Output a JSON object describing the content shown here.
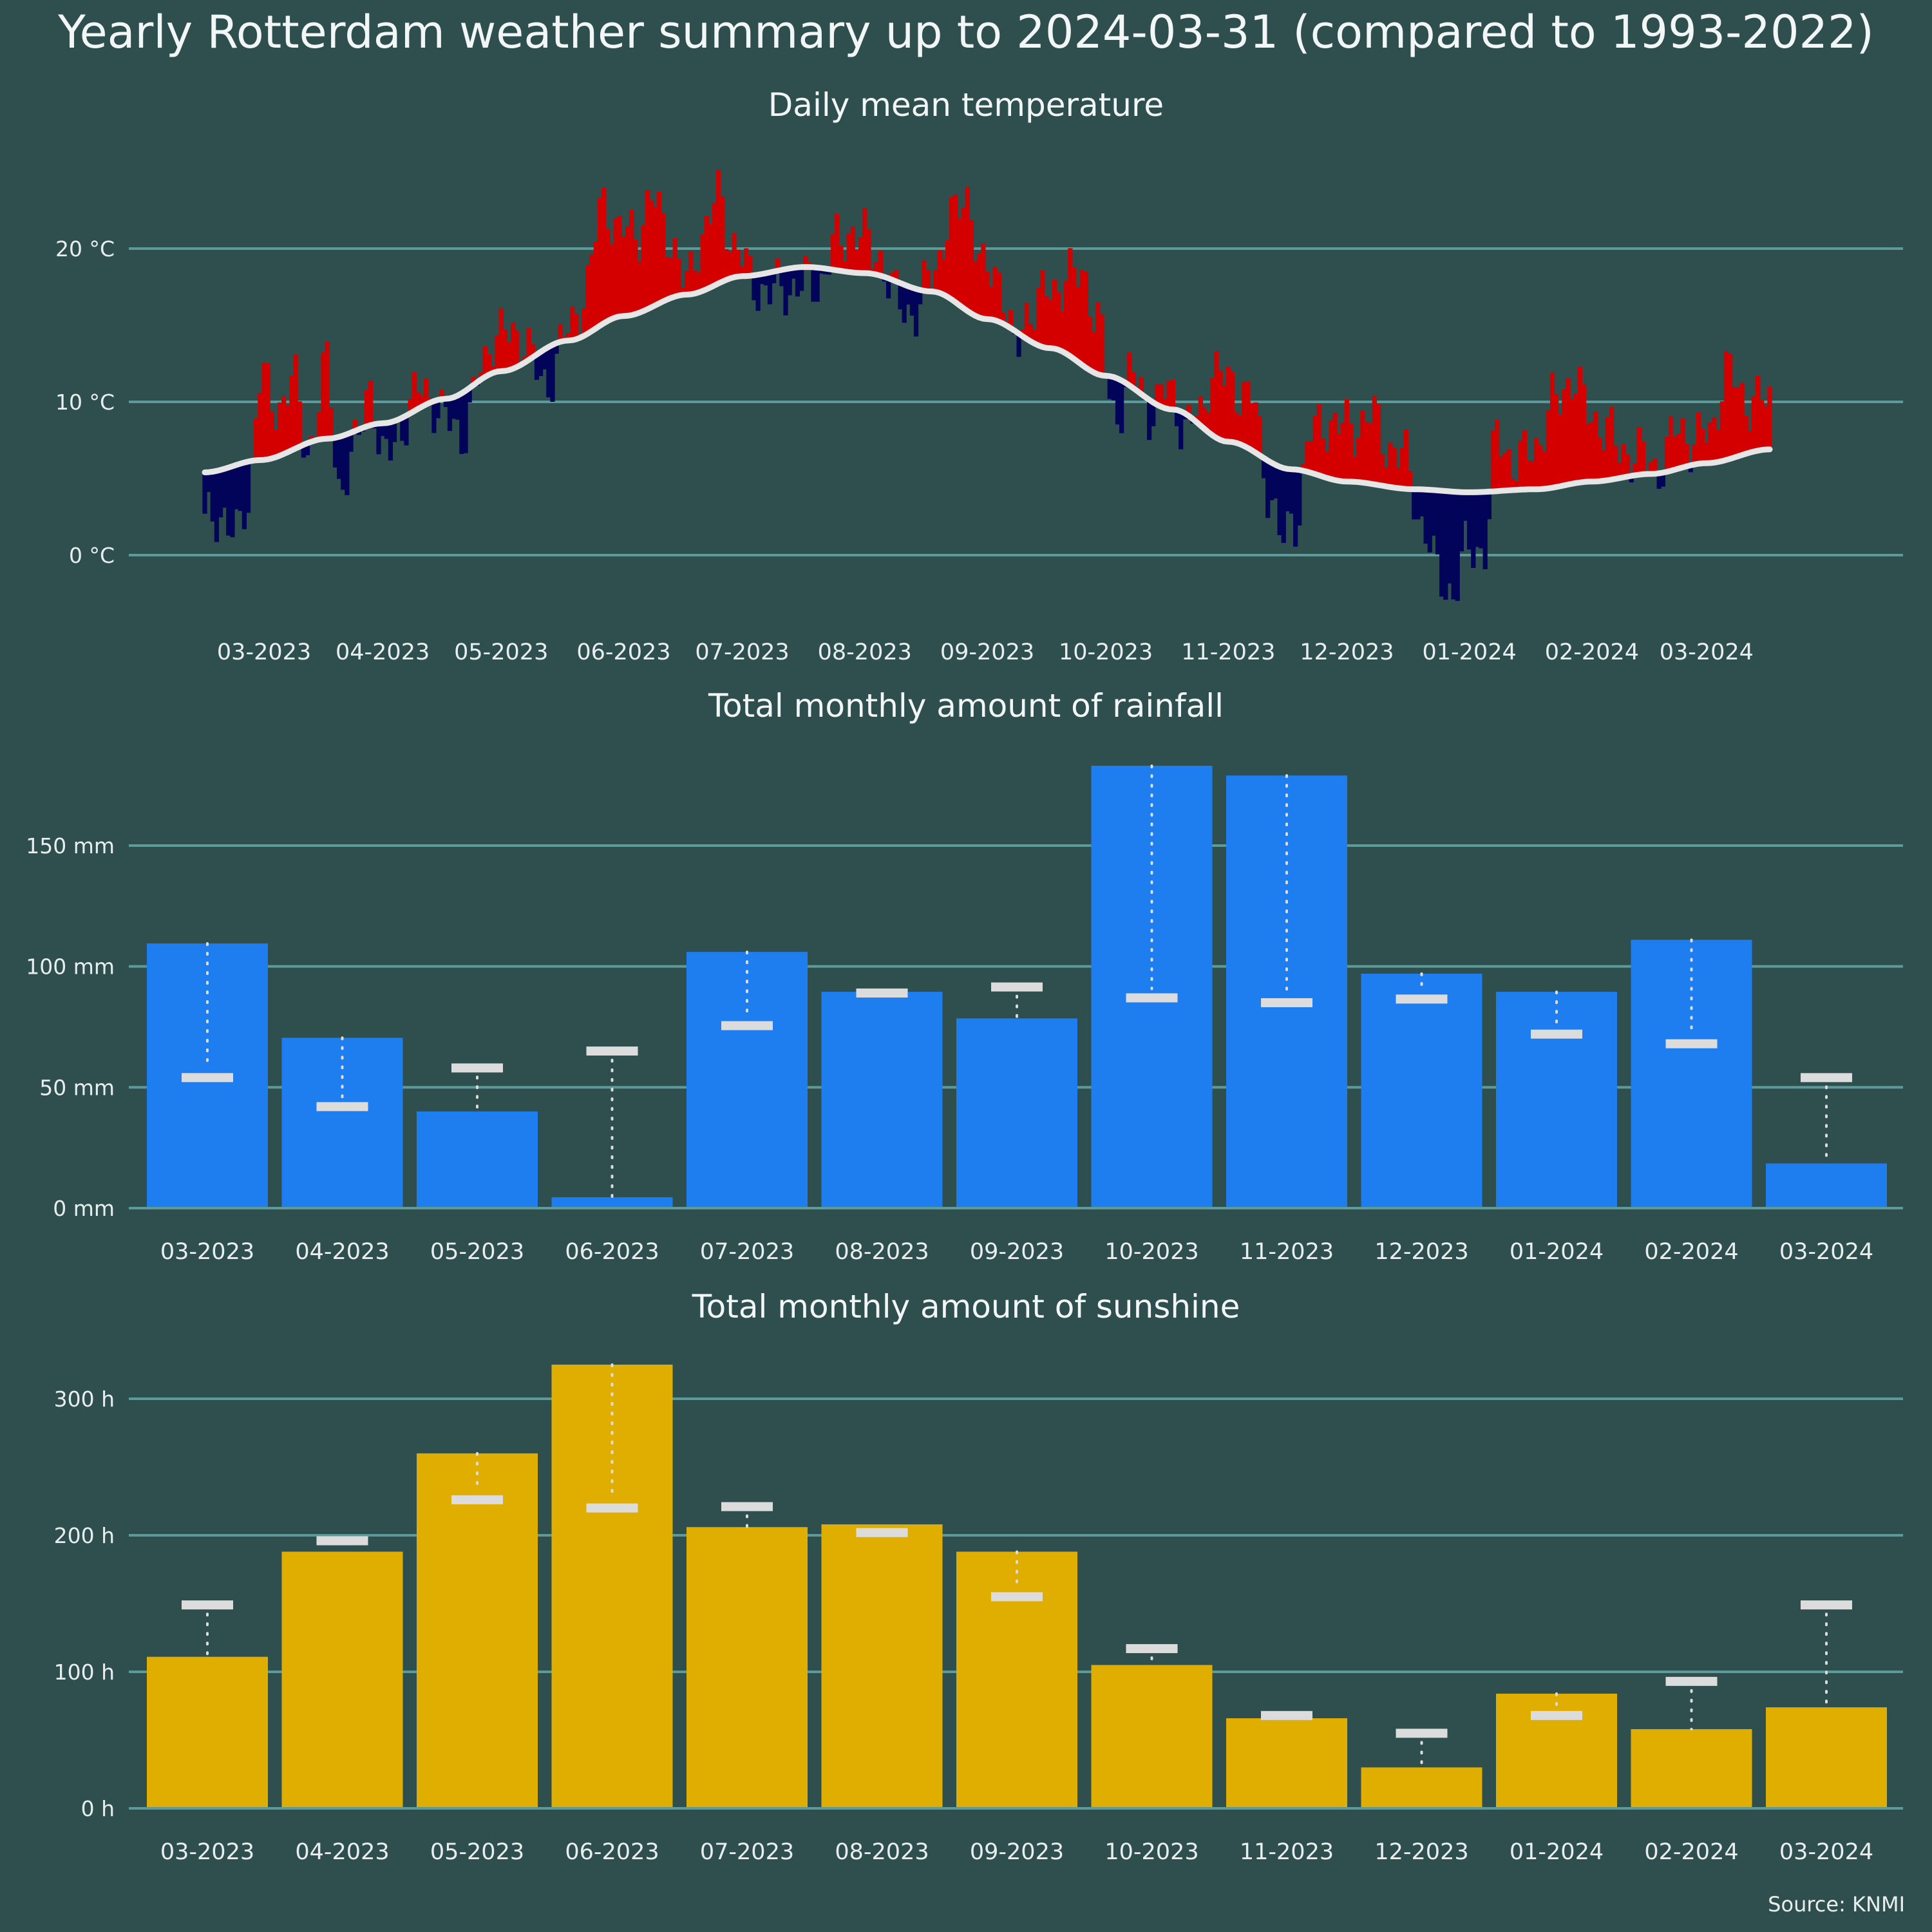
{
  "title": "Yearly Rotterdam weather summary up to 2024-03-31 (compared to 1993-2022)",
  "source": "Source: KNMI",
  "colors": {
    "background": "#2f4f4f",
    "grid": "#5d9a9a",
    "warm": "#d40000",
    "cold": "#02045a",
    "normal_line": "#e6e6e6",
    "rain": "#1e7ef0",
    "sun": "#e0ae00",
    "normal_marker": "#dcdcdc"
  },
  "chart_data": [
    {
      "type": "bar",
      "title": "Daily mean temperature",
      "unit": "°C",
      "y_ticks": [
        0,
        10,
        20
      ],
      "y_tick_labels": [
        "0 °C",
        "10 °C",
        "20 °C"
      ],
      "ylim": [
        -4,
        26.5
      ],
      "date_range": [
        "2023-03-01",
        "2024-03-31"
      ],
      "x_tick_labels": [
        "03-2023",
        "04-2023",
        "05-2023",
        "06-2023",
        "07-2023",
        "08-2023",
        "09-2023",
        "10-2023",
        "11-2023",
        "12-2023",
        "01-2024",
        "02-2024",
        "03-2024"
      ],
      "x_tick_dates": [
        "2023-03-16",
        "2023-04-15",
        "2023-05-15",
        "2023-06-15",
        "2023-07-15",
        "2023-08-15",
        "2023-09-15",
        "2023-10-15",
        "2023-11-15",
        "2023-12-15",
        "2024-01-15",
        "2024-02-15",
        "2024-03-15"
      ],
      "normal_curve": [
        [
          "2023-03-01",
          5.4
        ],
        [
          "2023-03-15",
          6.2
        ],
        [
          "2023-04-01",
          7.6
        ],
        [
          "2023-04-15",
          8.6
        ],
        [
          "2023-05-01",
          10.2
        ],
        [
          "2023-05-15",
          12.0
        ],
        [
          "2023-06-01",
          14.0
        ],
        [
          "2023-06-15",
          15.6
        ],
        [
          "2023-07-01",
          17.0
        ],
        [
          "2023-07-15",
          18.2
        ],
        [
          "2023-07-31",
          18.8
        ],
        [
          "2023-08-15",
          18.4
        ],
        [
          "2023-09-01",
          17.2
        ],
        [
          "2023-09-15",
          15.4
        ],
        [
          "2023-10-01",
          13.5
        ],
        [
          "2023-10-15",
          11.7
        ],
        [
          "2023-11-01",
          9.5
        ],
        [
          "2023-11-15",
          7.4
        ],
        [
          "2023-12-01",
          5.6
        ],
        [
          "2023-12-15",
          4.8
        ],
        [
          "2024-01-01",
          4.3
        ],
        [
          "2024-01-15",
          4.1
        ],
        [
          "2024-02-01",
          4.3
        ],
        [
          "2024-02-15",
          4.8
        ],
        [
          "2024-03-01",
          5.3
        ],
        [
          "2024-03-15",
          6.0
        ],
        [
          "2024-03-31",
          6.9
        ]
      ],
      "daily_series": {
        "name": "Daily mean temperature",
        "deviation_anchors": [
          [
            "2023-03-01",
            -3.5
          ],
          [
            "2023-03-06",
            -2.8
          ],
          [
            "2023-03-09",
            -4.9
          ],
          [
            "2023-03-12",
            -2.5
          ],
          [
            "2023-03-15",
            5.5
          ],
          [
            "2023-03-19",
            3.0
          ],
          [
            "2023-03-23",
            4.8
          ],
          [
            "2023-03-27",
            -0.5
          ],
          [
            "2023-04-01",
            4.6
          ],
          [
            "2023-04-04",
            -3.2
          ],
          [
            "2023-04-08",
            -1.4
          ],
          [
            "2023-04-12",
            2.8
          ],
          [
            "2023-04-15",
            -2.6
          ],
          [
            "2023-04-20",
            -0.4
          ],
          [
            "2023-04-25",
            1.2
          ],
          [
            "2023-05-01",
            -1.4
          ],
          [
            "2023-05-06",
            -2.5
          ],
          [
            "2023-05-10",
            0.5
          ],
          [
            "2023-05-13",
            2.5
          ],
          [
            "2023-05-20",
            2.0
          ],
          [
            "2023-05-26",
            -2.4
          ],
          [
            "2023-06-01",
            0.5
          ],
          [
            "2023-06-05",
            2.7
          ],
          [
            "2023-06-10",
            7.8
          ],
          [
            "2023-06-14",
            5.6
          ],
          [
            "2023-06-18",
            5.2
          ],
          [
            "2023-06-22",
            7.0
          ],
          [
            "2023-06-26",
            4.5
          ],
          [
            "2023-07-01",
            0.6
          ],
          [
            "2023-07-05",
            3.8
          ],
          [
            "2023-07-09",
            5.5
          ],
          [
            "2023-07-13",
            2.2
          ],
          [
            "2023-07-18",
            -0.6
          ],
          [
            "2023-07-23",
            -1.3
          ],
          [
            "2023-07-28",
            -1.2
          ],
          [
            "2023-08-03",
            -1.0
          ],
          [
            "2023-08-08",
            1.6
          ],
          [
            "2023-08-12",
            2.8
          ],
          [
            "2023-08-18",
            1.5
          ],
          [
            "2023-08-23",
            -1.2
          ],
          [
            "2023-08-28",
            -1.6
          ],
          [
            "2023-09-01",
            1.2
          ],
          [
            "2023-09-06",
            5.0
          ],
          [
            "2023-09-10",
            7.6
          ],
          [
            "2023-09-14",
            2.8
          ],
          [
            "2023-09-18",
            3.2
          ],
          [
            "2023-09-22",
            -1.4
          ],
          [
            "2023-09-26",
            2.4
          ],
          [
            "2023-10-01",
            3.6
          ],
          [
            "2023-10-06",
            5.2
          ],
          [
            "2023-10-10",
            5.8
          ],
          [
            "2023-10-13",
            3.5
          ],
          [
            "2023-10-17",
            -2.5
          ],
          [
            "2023-10-22",
            0.8
          ],
          [
            "2023-10-26",
            -0.6
          ],
          [
            "2023-10-31",
            1.2
          ],
          [
            "2023-11-04",
            -0.8
          ],
          [
            "2023-11-08",
            0.5
          ],
          [
            "2023-11-11",
            4.5
          ],
          [
            "2023-11-16",
            3.6
          ],
          [
            "2023-11-21",
            3.5
          ],
          [
            "2023-11-25",
            -1.6
          ],
          [
            "2023-11-29",
            -4.8
          ],
          [
            "2023-12-02",
            -3.2
          ],
          [
            "2023-12-06",
            2.6
          ],
          [
            "2023-12-11",
            3.8
          ],
          [
            "2023-12-16",
            3.4
          ],
          [
            "2023-12-21",
            4.4
          ],
          [
            "2023-12-26",
            2.6
          ],
          [
            "2023-12-30",
            1.8
          ],
          [
            "2024-01-03",
            -2.2
          ],
          [
            "2024-01-07",
            -5.4
          ],
          [
            "2024-01-11",
            -6.6
          ],
          [
            "2024-01-15",
            -3.4
          ],
          [
            "2024-01-19",
            -3.8
          ],
          [
            "2024-01-22",
            3.8
          ],
          [
            "2024-01-27",
            1.5
          ],
          [
            "2024-02-01",
            3.0
          ],
          [
            "2024-02-06",
            5.6
          ],
          [
            "2024-02-10",
            7.0
          ],
          [
            "2024-02-14",
            4.5
          ],
          [
            "2024-02-18",
            3.6
          ],
          [
            "2024-02-22",
            1.8
          ],
          [
            "2024-02-27",
            1.2
          ],
          [
            "2024-03-03",
            0.4
          ],
          [
            "2024-03-08",
            2.6
          ],
          [
            "2024-03-12",
            1.4
          ],
          [
            "2024-03-16",
            2.0
          ],
          [
            "2024-03-20",
            5.8
          ],
          [
            "2024-03-25",
            3.5
          ],
          [
            "2024-03-31",
            3.0
          ]
        ]
      }
    },
    {
      "type": "bar",
      "title": "Total monthly amount of rainfall",
      "unit": "mm",
      "categories": [
        "03-2023",
        "04-2023",
        "05-2023",
        "06-2023",
        "07-2023",
        "08-2023",
        "09-2023",
        "10-2023",
        "11-2023",
        "12-2023",
        "01-2024",
        "02-2024",
        "03-2024"
      ],
      "values": [
        109.5,
        70.5,
        40,
        4.5,
        106,
        89.5,
        78.5,
        183,
        179,
        97,
        89.5,
        111,
        18.5
      ],
      "normals": [
        54,
        42,
        58,
        65,
        75.5,
        89,
        91.5,
        87,
        85,
        86.5,
        72,
        68,
        54
      ],
      "y_ticks": [
        0,
        50,
        100,
        150
      ],
      "y_tick_labels": [
        "0 mm",
        "50 mm",
        "100 mm",
        "150 mm"
      ],
      "ylim": [
        0,
        183
      ]
    },
    {
      "type": "bar",
      "title": "Total monthly amount of sunshine",
      "unit": "h",
      "categories": [
        "03-2023",
        "04-2023",
        "05-2023",
        "06-2023",
        "07-2023",
        "08-2023",
        "09-2023",
        "10-2023",
        "11-2023",
        "12-2023",
        "01-2024",
        "02-2024",
        "03-2024"
      ],
      "values": [
        111,
        188,
        260,
        325,
        206,
        208,
        188,
        105,
        66,
        30,
        84,
        58,
        74
      ],
      "normals": [
        149,
        196,
        226,
        220,
        221,
        202,
        155,
        117,
        68,
        55,
        68,
        93,
        149
      ],
      "y_ticks": [
        0,
        100,
        200,
        300
      ],
      "y_tick_labels": [
        "0 h",
        "100 h",
        "200 h",
        "300 h"
      ],
      "ylim": [
        0,
        325
      ]
    }
  ]
}
